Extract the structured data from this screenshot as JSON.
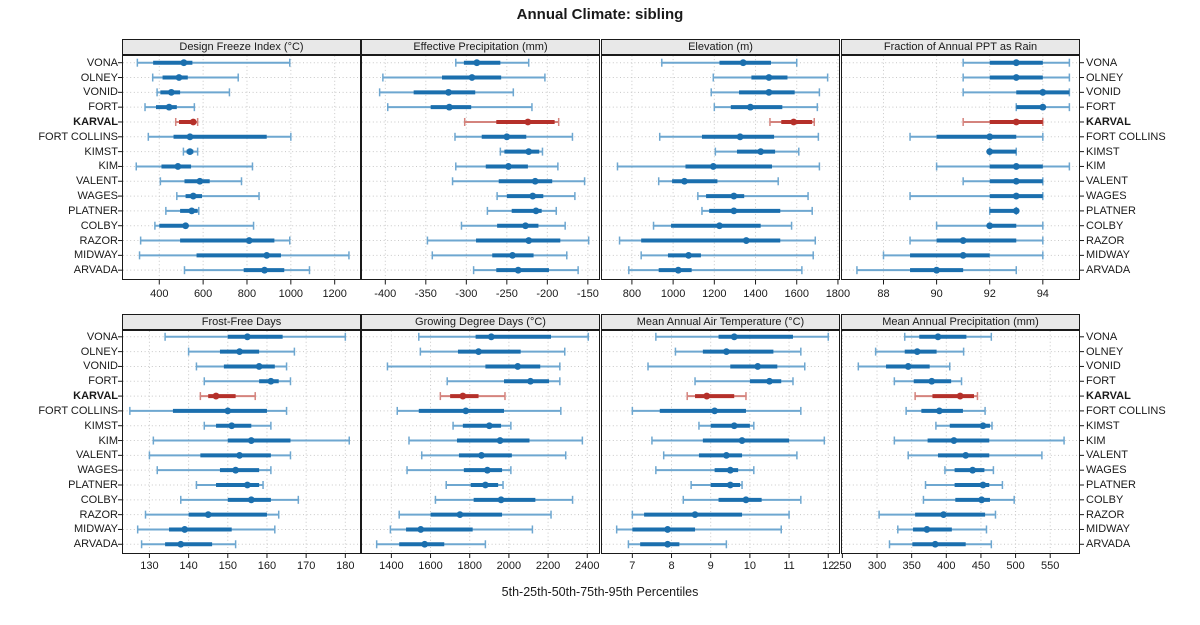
{
  "title": "Annual Climate: sibling",
  "caption": "5th-25th-50th-75th-95th Percentiles",
  "highlight_station": "KARVAL",
  "stations": [
    "VONA",
    "OLNEY",
    "VONID",
    "FORT",
    "KARVAL",
    "FORT COLLINS",
    "KIMST",
    "KIM",
    "VALENT",
    "WAGES",
    "PLATNER",
    "COLBY",
    "RAZOR",
    "MIDWAY",
    "ARVADA"
  ],
  "colors": {
    "blue_dark": "#1b6fae",
    "blue_light": "#6ea7d0",
    "red_dark": "#b5302a",
    "red_light": "#d4837d",
    "header_bg": "#e8e8e8",
    "border": "#1a1a1a",
    "grid": "#c8c8c8"
  },
  "chart_data": [
    {
      "type": "dotplot-percentiles",
      "title": "Design Freeze Index (°C)",
      "percentiles": [
        5,
        25,
        50,
        75,
        95
      ],
      "xlim": [
        230,
        1320
      ],
      "ticks": [
        400,
        600,
        800,
        1000,
        1200
      ],
      "values": [
        [
          300,
          372,
          512,
          551,
          995
        ],
        [
          370,
          415,
          490,
          530,
          760
        ],
        [
          390,
          405,
          455,
          495,
          720
        ],
        [
          335,
          385,
          445,
          480,
          560
        ],
        [
          475,
          490,
          555,
          565,
          575
        ],
        [
          350,
          465,
          540,
          890,
          1000
        ],
        [
          510,
          525,
          540,
          555,
          575
        ],
        [
          295,
          410,
          485,
          545,
          825
        ],
        [
          405,
          515,
          585,
          630,
          775
        ],
        [
          480,
          520,
          555,
          595,
          855
        ],
        [
          430,
          495,
          548,
          575,
          580
        ],
        [
          380,
          400,
          520,
          530,
          830
        ],
        [
          315,
          495,
          810,
          925,
          995
        ],
        [
          310,
          570,
          890,
          955,
          1265
        ],
        [
          515,
          785,
          880,
          970,
          1085
        ]
      ]
    },
    {
      "type": "dotplot-percentiles",
      "title": "Effective Precipitation (mm)",
      "percentiles": [
        5,
        25,
        50,
        75,
        95
      ],
      "xlim": [
        -430,
        -135
      ],
      "ticks": [
        -400,
        -350,
        -300,
        -250,
        -200,
        -150
      ],
      "values": [
        [
          -313,
          -303,
          -287,
          -258,
          -223
        ],
        [
          -403,
          -330,
          -293,
          -257,
          -203
        ],
        [
          -407,
          -365,
          -322,
          -289,
          -242
        ],
        [
          -397,
          -344,
          -321,
          -294,
          -219
        ],
        [
          -302,
          -263,
          -224,
          -191,
          -186
        ],
        [
          -314,
          -281,
          -250,
          -226,
          -169
        ],
        [
          -258,
          -253,
          -223,
          -210,
          -206
        ],
        [
          -313,
          -276,
          -248,
          -224,
          -187
        ],
        [
          -317,
          -260,
          -215,
          -194,
          -154
        ],
        [
          -262,
          -250,
          -218,
          -205,
          -166
        ],
        [
          -274,
          -244,
          -214,
          -207,
          -189
        ],
        [
          -306,
          -262,
          -227,
          -211,
          -178
        ],
        [
          -348,
          -288,
          -223,
          -184,
          -149
        ],
        [
          -342,
          -268,
          -243,
          -217,
          -176
        ],
        [
          -291,
          -263,
          -236,
          -198,
          -162
        ]
      ]
    },
    {
      "type": "dotplot-percentiles",
      "title": "Elevation (m)",
      "percentiles": [
        5,
        25,
        50,
        75,
        95
      ],
      "xlim": [
        650,
        1810
      ],
      "ticks": [
        800,
        1000,
        1200,
        1400,
        1600,
        1800
      ],
      "values": [
        [
          945,
          1225,
          1340,
          1475,
          1600
        ],
        [
          1195,
          1380,
          1465,
          1555,
          1750
        ],
        [
          1185,
          1320,
          1465,
          1590,
          1710
        ],
        [
          1200,
          1280,
          1375,
          1530,
          1700
        ],
        [
          1470,
          1525,
          1585,
          1675,
          1685
        ],
        [
          935,
          1140,
          1325,
          1490,
          1705
        ],
        [
          1205,
          1310,
          1425,
          1495,
          1610
        ],
        [
          730,
          1060,
          1195,
          1480,
          1710
        ],
        [
          930,
          995,
          1055,
          1215,
          1510
        ],
        [
          1120,
          1160,
          1295,
          1345,
          1655
        ],
        [
          1140,
          1175,
          1295,
          1520,
          1675
        ],
        [
          905,
          990,
          1225,
          1425,
          1575
        ],
        [
          740,
          845,
          1355,
          1520,
          1690
        ],
        [
          845,
          975,
          1075,
          1135,
          1680
        ],
        [
          785,
          930,
          1025,
          1090,
          1625
        ]
      ]
    },
    {
      "type": "dotplot-percentiles",
      "title": "Fraction of Annual PPT as Rain",
      "percentiles": [
        5,
        25,
        50,
        75,
        95
      ],
      "xlim": [
        86.4,
        95.4
      ],
      "ticks": [
        88,
        90,
        92,
        94
      ],
      "values": [
        [
          91,
          92,
          93,
          94,
          95
        ],
        [
          91,
          92,
          93,
          94,
          95
        ],
        [
          91,
          93,
          94,
          95,
          95
        ],
        [
          93,
          93,
          94,
          94,
          95
        ],
        [
          91,
          92,
          93,
          94,
          94
        ],
        [
          89,
          90,
          92,
          93,
          94
        ],
        [
          92,
          92,
          92,
          93,
          93
        ],
        [
          90,
          92,
          93,
          94,
          95
        ],
        [
          91,
          92,
          93,
          94,
          94
        ],
        [
          89,
          92,
          93,
          94,
          94
        ],
        [
          92,
          92,
          93,
          93,
          93
        ],
        [
          90,
          92,
          92,
          93,
          94
        ],
        [
          89,
          90,
          91,
          93,
          94
        ],
        [
          88,
          89,
          91,
          92,
          94
        ],
        [
          87,
          89,
          90,
          91,
          93
        ]
      ]
    },
    {
      "type": "dotplot-percentiles",
      "title": "Frost-Free Days",
      "percentiles": [
        5,
        25,
        50,
        75,
        95
      ],
      "xlim": [
        123,
        184
      ],
      "ticks": [
        130,
        140,
        150,
        160,
        170,
        180
      ],
      "values": [
        [
          134,
          150,
          155,
          164,
          180
        ],
        [
          140,
          148,
          153,
          158,
          167
        ],
        [
          142,
          149,
          158,
          162,
          165
        ],
        [
          144,
          158,
          161,
          163,
          166
        ],
        [
          143,
          145,
          147,
          152,
          157
        ],
        [
          125,
          136,
          150,
          160,
          165
        ],
        [
          144,
          147,
          151,
          156,
          161
        ],
        [
          131,
          150,
          156,
          166,
          181
        ],
        [
          130,
          143,
          153,
          161,
          166
        ],
        [
          132,
          148,
          152,
          158,
          161
        ],
        [
          142,
          147,
          155,
          158,
          159
        ],
        [
          138,
          150,
          156,
          161,
          168
        ],
        [
          129,
          140,
          145,
          160,
          163
        ],
        [
          127,
          135,
          139,
          151,
          162
        ],
        [
          128,
          134,
          138,
          146,
          152
        ]
      ]
    },
    {
      "type": "dotplot-percentiles",
      "title": "Growing Degree Days (°C)",
      "percentiles": [
        5,
        25,
        50,
        75,
        95
      ],
      "xlim": [
        1245,
        2465
      ],
      "ticks": [
        1400,
        1600,
        1800,
        2000,
        2200,
        2400
      ],
      "values": [
        [
          1540,
          1830,
          1910,
          2215,
          2405
        ],
        [
          1548,
          1740,
          1845,
          2060,
          2285
        ],
        [
          1380,
          1880,
          2045,
          2160,
          2260
        ],
        [
          1685,
          1975,
          2110,
          2205,
          2260
        ],
        [
          1650,
          1700,
          1765,
          1845,
          1980
        ],
        [
          1430,
          1540,
          1780,
          1975,
          2265
        ],
        [
          1715,
          1765,
          1900,
          1960,
          2010
        ],
        [
          1490,
          1735,
          1955,
          2105,
          2375
        ],
        [
          1555,
          1745,
          1860,
          2015,
          2290
        ],
        [
          1480,
          1770,
          1890,
          1965,
          2010
        ],
        [
          1680,
          1805,
          1880,
          1945,
          1970
        ],
        [
          1625,
          1820,
          1960,
          2135,
          2325
        ],
        [
          1440,
          1600,
          1750,
          1965,
          2215
        ],
        [
          1395,
          1475,
          1550,
          1815,
          2120
        ],
        [
          1325,
          1440,
          1570,
          1670,
          1880
        ]
      ]
    },
    {
      "type": "dotplot-percentiles",
      "title": "Mean Annual Air Temperature (°C)",
      "percentiles": [
        5,
        25,
        50,
        75,
        95
      ],
      "xlim": [
        6.2,
        12.3
      ],
      "ticks": [
        7,
        8,
        9,
        10,
        11,
        12
      ],
      "values": [
        [
          7.6,
          9.2,
          9.6,
          11.1,
          12.0
        ],
        [
          8.1,
          8.8,
          9.4,
          10.6,
          11.3
        ],
        [
          7.4,
          9.5,
          10.2,
          10.7,
          11.4
        ],
        [
          8.6,
          10.0,
          10.5,
          10.8,
          11.1
        ],
        [
          8.4,
          8.6,
          8.9,
          9.6,
          9.9
        ],
        [
          7.0,
          7.7,
          9.1,
          9.9,
          11.3
        ],
        [
          8.7,
          9.0,
          9.6,
          10.0,
          10.1
        ],
        [
          7.5,
          8.8,
          9.8,
          11.0,
          11.9
        ],
        [
          7.8,
          8.7,
          9.4,
          9.8,
          11.2
        ],
        [
          7.6,
          9.1,
          9.5,
          9.7,
          10.1
        ],
        [
          8.5,
          9.0,
          9.5,
          9.75,
          9.8
        ],
        [
          8.3,
          9.2,
          9.9,
          10.3,
          11.3
        ],
        [
          7.0,
          7.3,
          8.6,
          9.8,
          11.0
        ],
        [
          6.6,
          7.0,
          7.9,
          8.6,
          10.8
        ],
        [
          6.9,
          7.2,
          7.9,
          8.2,
          9.4
        ]
      ]
    },
    {
      "type": "dotplot-percentiles",
      "title": "Mean Annual Precipitation (mm)",
      "percentiles": [
        5,
        25,
        50,
        75,
        95
      ],
      "xlim": [
        248,
        593
      ],
      "ticks": [
        250,
        300,
        350,
        400,
        450,
        500,
        550
      ],
      "values": [
        [
          340,
          361,
          388,
          429,
          465
        ],
        [
          298,
          340,
          358,
          386,
          425
        ],
        [
          273,
          313,
          345,
          376,
          405
        ],
        [
          325,
          353,
          379,
          407,
          422
        ],
        [
          355,
          380,
          420,
          440,
          445
        ],
        [
          342,
          364,
          390,
          424,
          456
        ],
        [
          385,
          405,
          453,
          463,
          466
        ],
        [
          325,
          373,
          411,
          462,
          570
        ],
        [
          345,
          388,
          428,
          462,
          538
        ],
        [
          398,
          412,
          438,
          455,
          468
        ],
        [
          370,
          412,
          453,
          462,
          481
        ],
        [
          367,
          413,
          451,
          463,
          498
        ],
        [
          303,
          355,
          396,
          456,
          471
        ],
        [
          330,
          352,
          372,
          408,
          458
        ],
        [
          318,
          351,
          384,
          428,
          465
        ]
      ]
    }
  ]
}
